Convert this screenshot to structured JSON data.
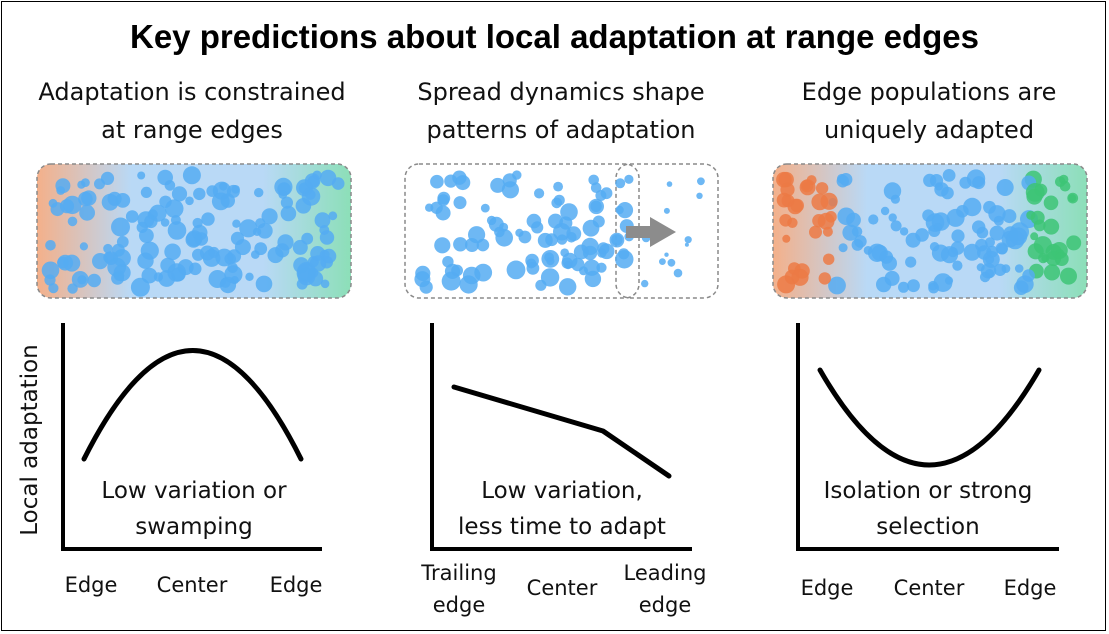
{
  "title": "Key predictions about local adaptation at range edges",
  "y_axis_label": "Local adaptation",
  "colors": {
    "circle_blue": "#55acf2",
    "edge_orange": "#ec7a45",
    "edge_green": "#3dc476",
    "arrow_gray": "#8c8c8c",
    "curve": "#000000"
  },
  "panels": [
    {
      "subtitle": [
        "Adaptation is constrained",
        "at range edges"
      ],
      "note": [
        "Low variation or",
        "swamping"
      ],
      "x_ticks": [
        "Edge",
        "Center",
        "Edge"
      ],
      "curve_shape": "hump",
      "population_image": "gradient-orange-blue-green"
    },
    {
      "subtitle": [
        "Spread dynamics shape",
        "patterns of adaptation"
      ],
      "note": [
        "Low variation,",
        "less time to adapt"
      ],
      "x_ticks": [
        "Trailing\nedge",
        "Center",
        "Leading\nedge"
      ],
      "curve_shape": "declining",
      "population_image": "spreading-with-arrow"
    },
    {
      "subtitle": [
        "Edge populations are",
        "uniquely adapted"
      ],
      "note": [
        "Isolation or strong",
        "selection"
      ],
      "x_ticks": [
        "Edge",
        "Center",
        "Edge"
      ],
      "curve_shape": "trough",
      "population_image": "edge-colored-populations"
    }
  ]
}
